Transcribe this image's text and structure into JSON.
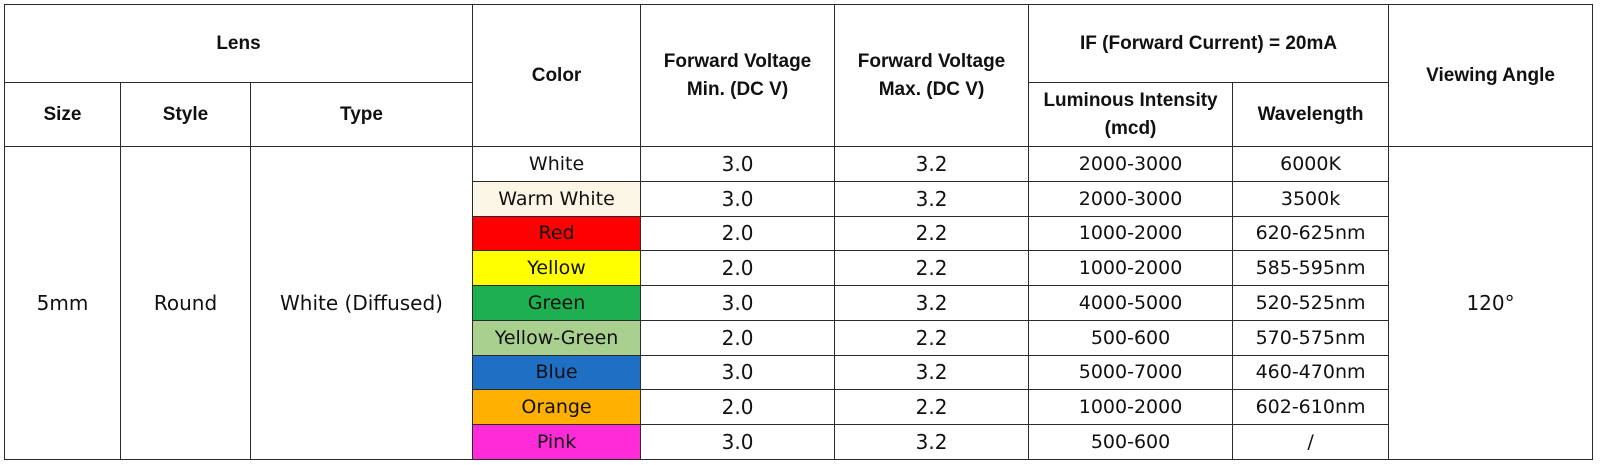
{
  "headers": {
    "lens": "Lens",
    "size": "Size",
    "style": "Style",
    "type": "Type",
    "color": "Color",
    "vf_min": [
      "Forward Voltage",
      "Min. (DC V)"
    ],
    "vf_max": [
      "Forward Voltage",
      "Max. (DC V)"
    ],
    "if_group": "IF (Forward Current) = 20mA",
    "luminous": [
      "Luminous Intensity",
      "(mcd)"
    ],
    "wavelength": "Wavelength",
    "viewing_angle": "Viewing Angle"
  },
  "spec": {
    "size": "5mm",
    "style": "Round",
    "type": "White (Diffused)",
    "viewing_angle": "120°"
  },
  "rows": [
    {
      "color": "White",
      "bg": "#ffffff",
      "vf_min": "3.0",
      "vf_max": "3.2",
      "luminous": "2000-3000",
      "wavelength": "6000K"
    },
    {
      "color": "Warm White",
      "bg": "#fbf6e6",
      "vf_min": "3.0",
      "vf_max": "3.2",
      "luminous": "2000-3000",
      "wavelength": "3500k"
    },
    {
      "color": "Red",
      "bg": "#ff0000",
      "vf_min": "2.0",
      "vf_max": "2.2",
      "luminous": "1000-2000",
      "wavelength": "620-625nm"
    },
    {
      "color": "Yellow",
      "bg": "#ffff00",
      "vf_min": "2.0",
      "vf_max": "2.2",
      "luminous": "1000-2000",
      "wavelength": "585-595nm"
    },
    {
      "color": "Green",
      "bg": "#1eb050",
      "vf_min": "3.0",
      "vf_max": "3.2",
      "luminous": "4000-5000",
      "wavelength": "520-525nm"
    },
    {
      "color": "Yellow-Green",
      "bg": "#a9d08e",
      "vf_min": "2.0",
      "vf_max": "2.2",
      "luminous": "500-600",
      "wavelength": "570-575nm"
    },
    {
      "color": "Blue",
      "bg": "#1f6fc5",
      "vf_min": "3.0",
      "vf_max": "3.2",
      "luminous": "5000-7000",
      "wavelength": "460-470nm"
    },
    {
      "color": "Orange",
      "bg": "#ffb000",
      "vf_min": "2.0",
      "vf_max": "2.2",
      "luminous": "1000-2000",
      "wavelength": "602-610nm"
    },
    {
      "color": "Pink",
      "bg": "#ff2ad8",
      "vf_min": "3.0",
      "vf_max": "3.2",
      "luminous": "500-600",
      "wavelength": "/"
    }
  ]
}
